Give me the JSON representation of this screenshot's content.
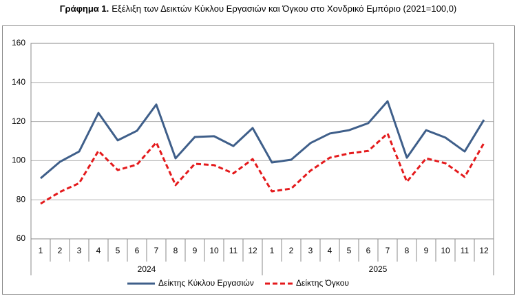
{
  "chart_data": {
    "type": "line",
    "title_label": "Γράφημα 1.",
    "title": "Εξέλιξη των Δεικτών Κύκλου Εργασιών και Όγκου στο Χονδρικό Εμπόριο (2021=100,0)",
    "categories": [
      "1",
      "2",
      "3",
      "4",
      "5",
      "6",
      "7",
      "8",
      "9",
      "10",
      "11",
      "12",
      "1",
      "2",
      "3",
      "4",
      "5",
      "6",
      "7",
      "8",
      "9",
      "10",
      "11",
      "12"
    ],
    "groups": [
      "2024",
      "2025"
    ],
    "series": [
      {
        "name": "Δείκτης Κύκλου Εργασιών",
        "color": "#3f5f8a",
        "dash": false,
        "values": [
          91,
          99.4,
          104.7,
          124.4,
          110.4,
          115.3,
          128.7,
          101.2,
          112.1,
          112.5,
          107.5,
          116.7,
          99.1,
          100.5,
          109,
          113.9,
          115.6,
          119.2,
          130.4,
          101.5,
          115.6,
          111.8,
          104.7,
          120.9
        ]
      },
      {
        "name": "Δείκτης Όγκου",
        "color": "#e41a1c",
        "dash": true,
        "values": [
          78,
          84,
          88.5,
          105,
          95.2,
          98,
          109.3,
          87.5,
          98.4,
          97.7,
          93.5,
          100.8,
          84.3,
          85.7,
          94.9,
          101.5,
          103.7,
          105,
          113.9,
          89.2,
          101.2,
          98.7,
          91.7,
          109
        ]
      }
    ],
    "ylim": [
      60,
      160
    ],
    "yticks": [
      60,
      80,
      100,
      120,
      140,
      160
    ],
    "grid": true,
    "legend": "bottom"
  }
}
